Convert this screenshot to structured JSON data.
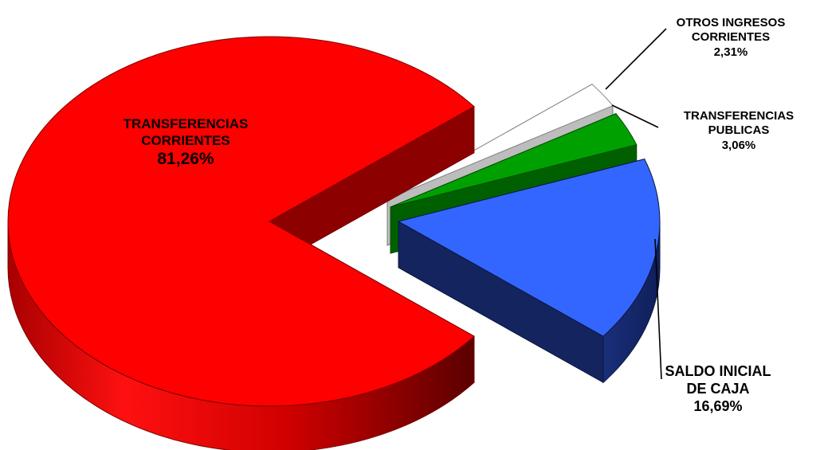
{
  "chart_data": {
    "type": "pie",
    "style": "3d-exploded",
    "slices": [
      {
        "label_lines": [
          "TRANSFERENCIAS",
          "CORRIENTES"
        ],
        "value": 81.26,
        "value_text": "81,26%",
        "color": "#ff0000"
      },
      {
        "label_lines": [
          "SALDO INICIAL",
          "DE CAJA"
        ],
        "value": 16.69,
        "value_text": "16,69%",
        "color": "#3366ff"
      },
      {
        "label_lines": [
          "TRANSFERENCIAS",
          "PUBLICAS"
        ],
        "value": 3.06,
        "value_text": "3,06%",
        "color": "#00a000"
      },
      {
        "label_lines": [
          "OTROS INGRESOS",
          "CORRIENTES"
        ],
        "value": 2.31,
        "value_text": "2,31%",
        "color": "#ffffff"
      }
    ]
  }
}
